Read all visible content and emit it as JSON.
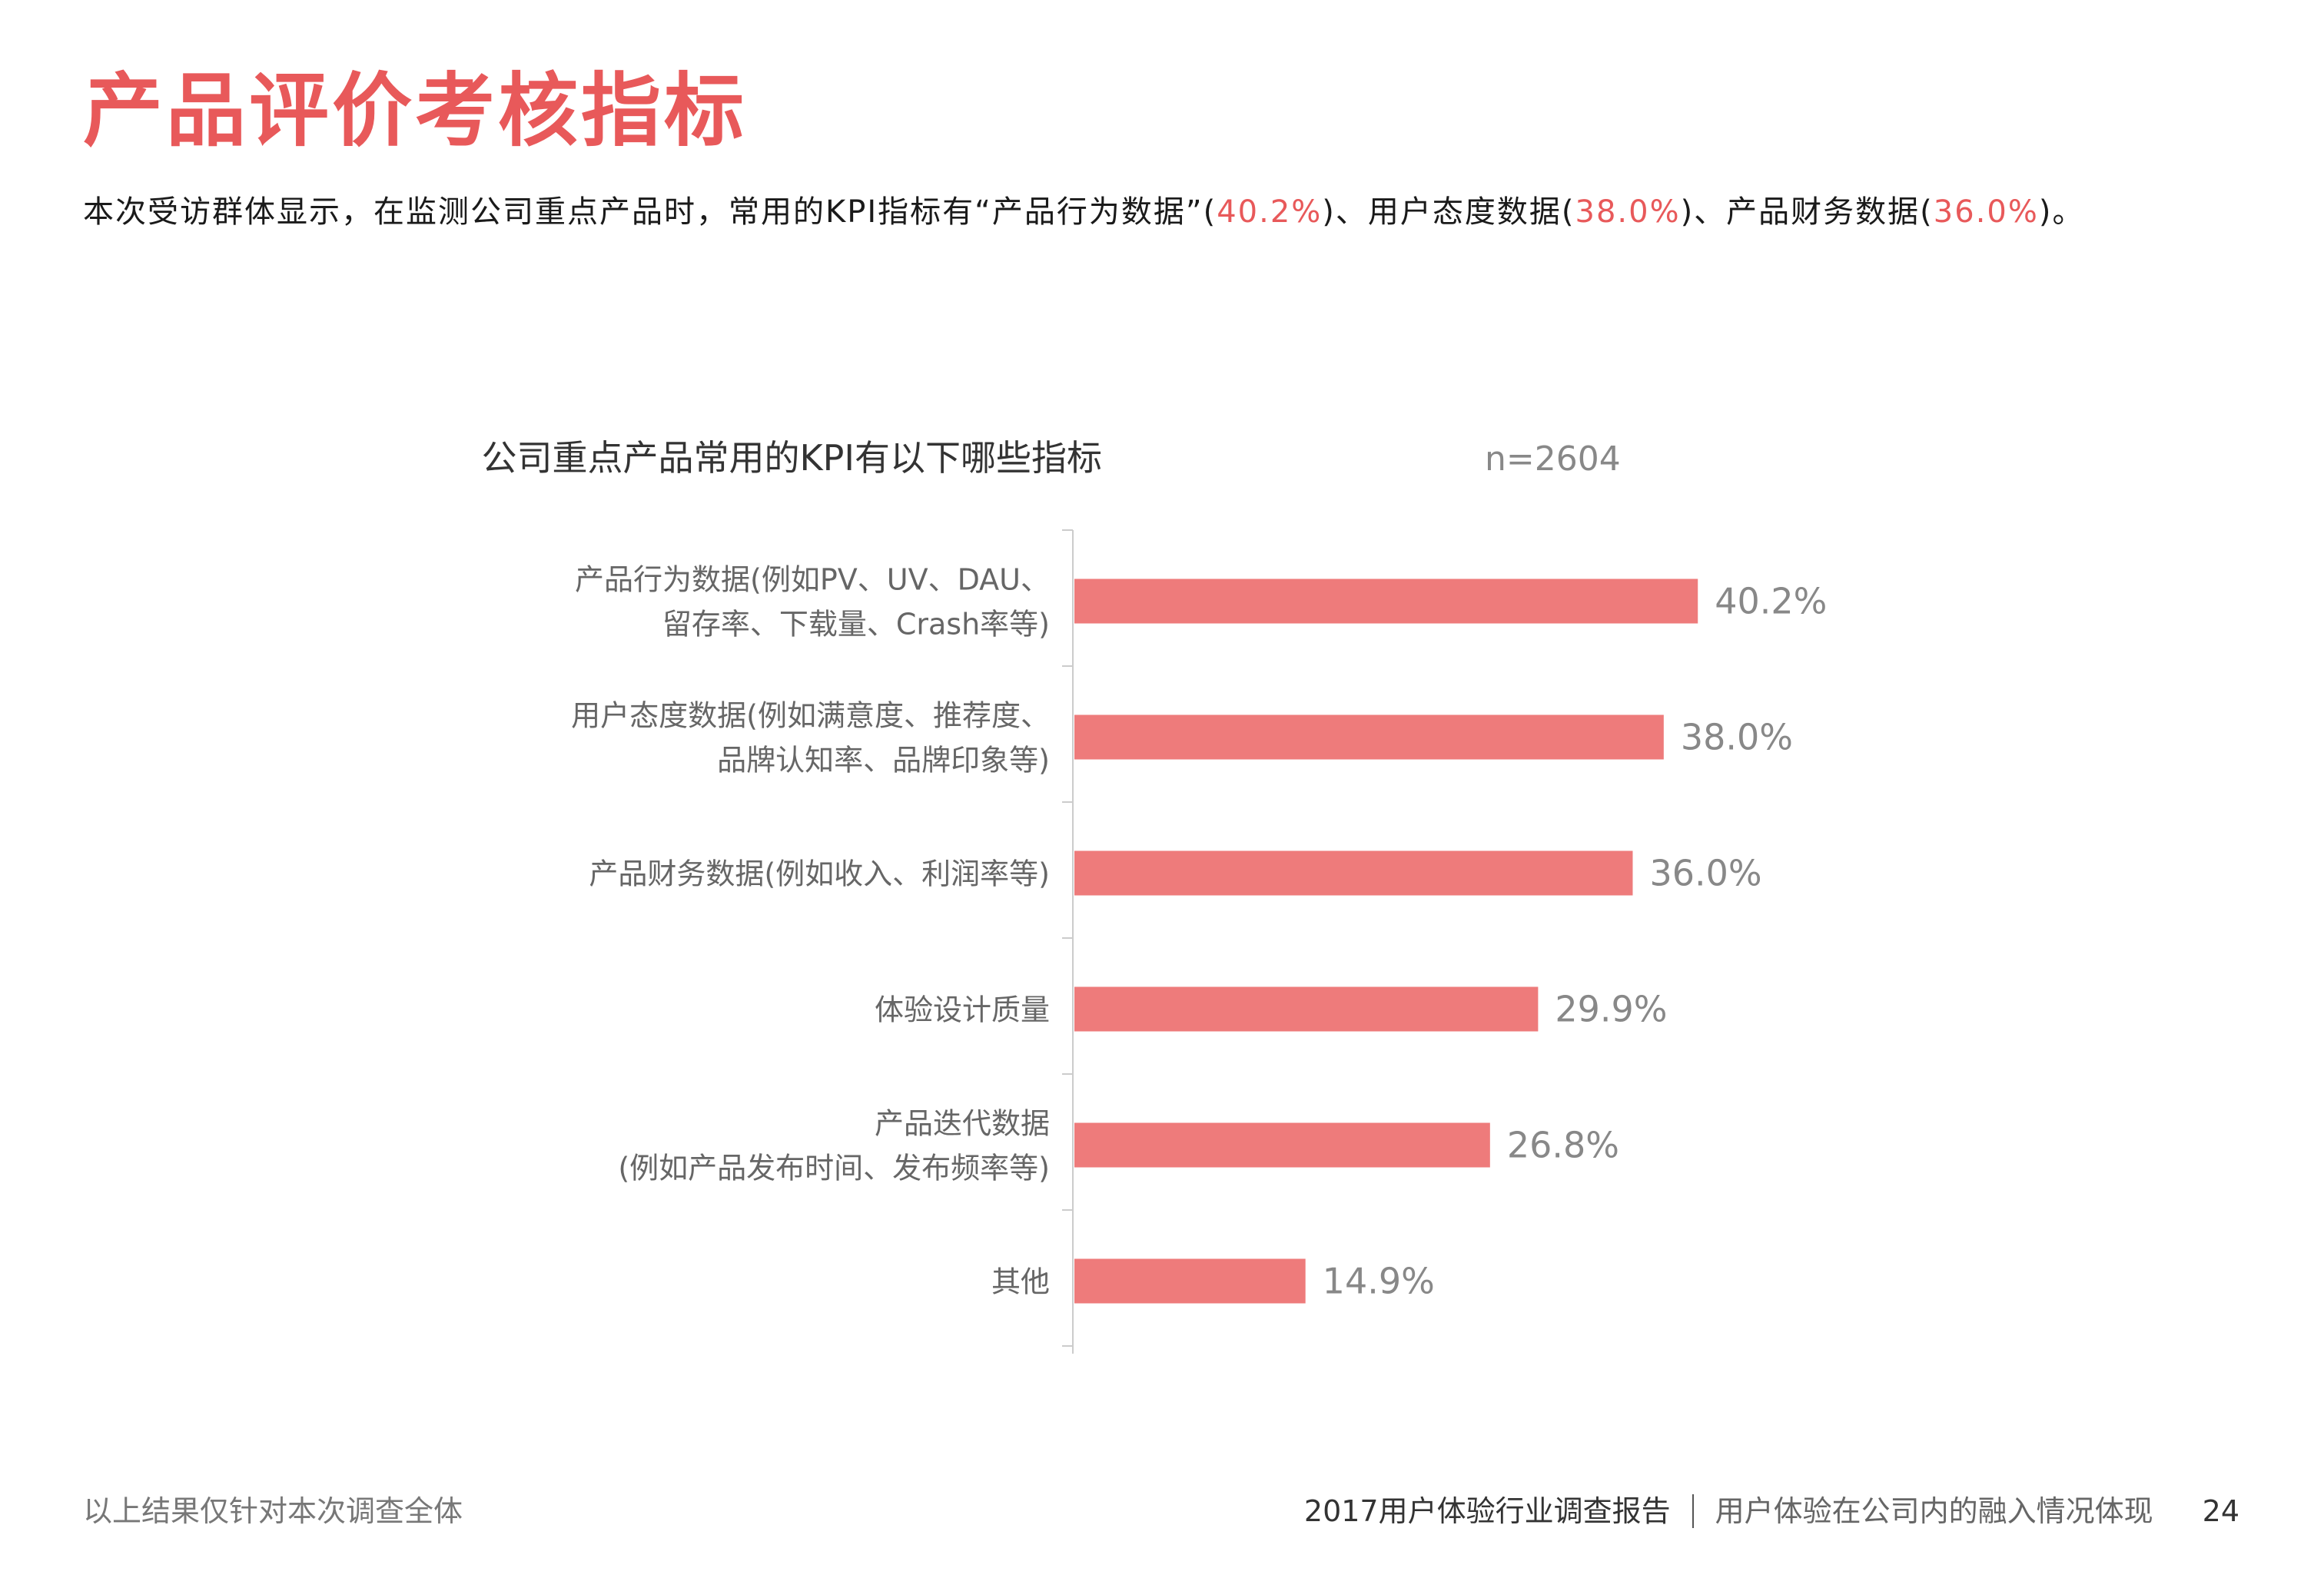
{
  "page": {
    "title": "产品评价考核指标",
    "summary": {
      "before_1": "本次受访群体显示，在监测公司重点产品时，常用的KPI指标有“产品行为数据”(",
      "value_1": "40.2%",
      "between_1_2": ")、用户态度数据(",
      "value_2": "38.0%",
      "between_2_3": ")、产品财务数据(",
      "value_3": "36.0%",
      "after_3": ")。"
    },
    "accent_color": "#e8595a"
  },
  "chart_data": {
    "type": "bar",
    "orientation": "horizontal",
    "title": "公司重点产品常用的KPI有以下哪些指标",
    "sample_size": "n=2604",
    "categories": [
      [
        "产品行为数据(例如PV、UV、DAU、",
        "留存率、下载量、Crash率等)"
      ],
      [
        "用户态度数据(例如满意度、推荐度、",
        "品牌认知率、品牌印象等)"
      ],
      [
        "产品财务数据(例如收入、利润率等)"
      ],
      [
        "体验设计质量"
      ],
      [
        "产品迭代数据",
        "(例如产品发布时间、发布频率等)"
      ],
      [
        "其他"
      ]
    ],
    "values": [
      40.2,
      38.0,
      36.0,
      29.9,
      26.8,
      14.9
    ],
    "value_labels": [
      "40.2%",
      "38.0%",
      "36.0%",
      "29.9%",
      "26.8%",
      "14.9%"
    ],
    "unit": "%",
    "bar_color": "#ee7b7b",
    "grid": false,
    "legend": "none"
  },
  "footer": {
    "note": "以上结果仅针对本次调查全体",
    "report": "2017用户体验行业调查报告",
    "section": "用户体验在公司内的融入情况体现",
    "page_number": "24"
  }
}
